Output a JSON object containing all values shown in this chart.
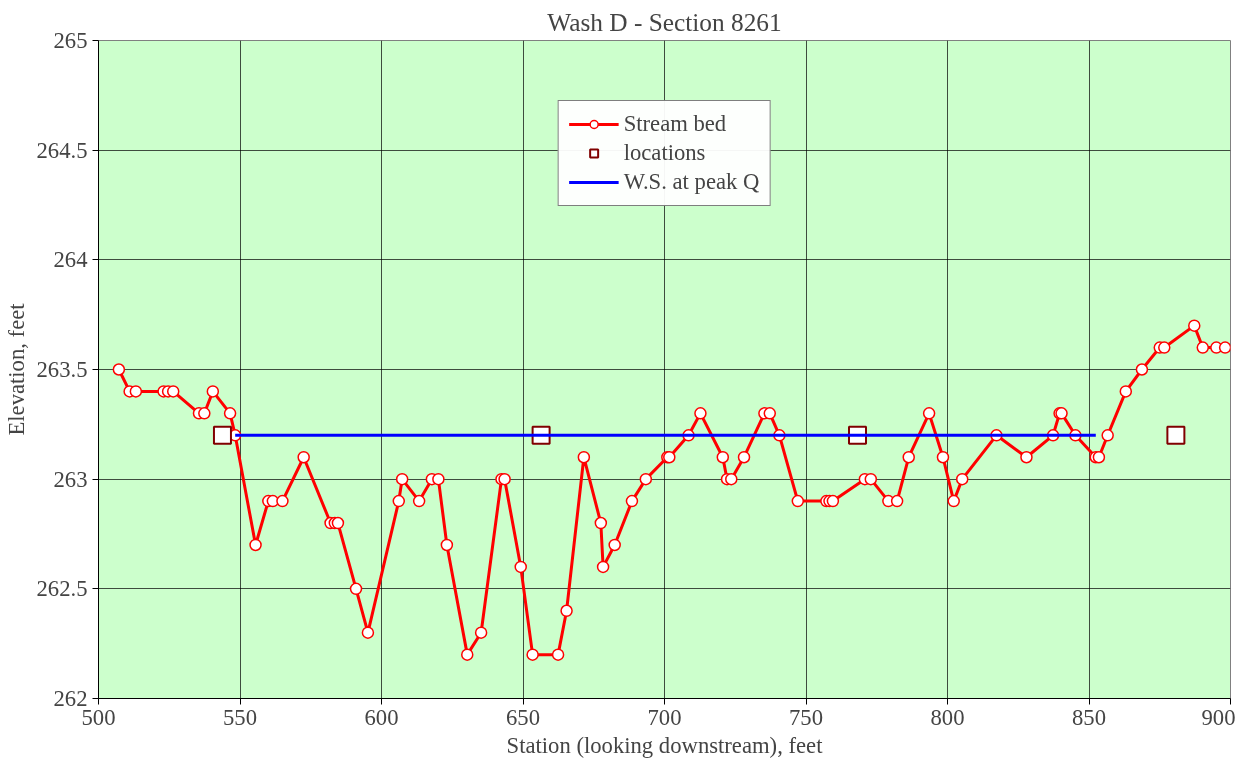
{
  "chart_data": {
    "type": "line",
    "title": "Wash D - Section 8261",
    "xlabel": "Station (looking downstream), feet",
    "ylabel": "Elevation, feet",
    "xlim": [
      500,
      900
    ],
    "xticks": [
      500,
      550,
      600,
      650,
      700,
      750,
      800,
      850,
      900
    ],
    "ylim": [
      262,
      265
    ],
    "yticks": [
      262,
      262.5,
      263,
      263.5,
      264,
      264.5,
      265
    ],
    "grid": true,
    "legend": "top",
    "line_style": "solid",
    "series": [
      {
        "name": "Stream bed",
        "marker": "circle",
        "color": "#ff0000",
        "x": [
          507.2,
          511,
          513.2,
          523,
          524.6,
          526.4,
          535.5,
          537.4,
          540.4,
          546.5,
          548.3,
          555.5,
          560,
          561.6,
          565,
          572.5,
          582,
          583.5,
          584.6,
          591,
          595.2,
          606.1,
          607.3,
          613.3,
          617.8,
          620.1,
          623.1,
          630.3,
          635.2,
          642.4,
          643.5,
          649.2,
          653.4,
          662.4,
          665.4,
          671.5,
          677.5,
          678.3,
          682.4,
          688.5,
          693.4,
          701,
          701.7,
          708.5,
          712.7,
          720.6,
          722.1,
          723.6,
          728.1,
          735.3,
          737.2,
          740.6,
          747.1,
          757.2,
          758.3,
          759.5,
          770.8,
          772.9,
          779.1,
          782.2,
          786.3,
          793.5,
          798.4,
          802.2,
          805.2,
          817.3,
          827.9,
          837.3,
          839.6,
          840.3,
          845.2,
          852.4,
          853.5,
          856.6,
          863,
          868.7,
          875,
          876.6,
          887.2,
          890.2,
          895,
          898.1
        ],
        "values": [
          263.5,
          263.4,
          263.4,
          263.4,
          263.4,
          263.4,
          263.3,
          263.3,
          263.4,
          263.3,
          263.2,
          262.7,
          262.9,
          262.9,
          262.9,
          263.1,
          262.8,
          262.8,
          262.8,
          262.5,
          262.3,
          262.9,
          263,
          262.9,
          263,
          263,
          262.7,
          262.2,
          262.3,
          263,
          263,
          262.6,
          262.2,
          262.2,
          262.4,
          263.1,
          262.8,
          262.6,
          262.7,
          262.9,
          263,
          263.1,
          263.1,
          263.2,
          263.3,
          263.1,
          263,
          263,
          263.1,
          263.3,
          263.3,
          263.2,
          262.9,
          262.9,
          262.9,
          262.9,
          263,
          263,
          262.9,
          262.9,
          263.1,
          263.3,
          263.1,
          262.9,
          263,
          263.2,
          263.1,
          263.2,
          263.3,
          263.3,
          263.2,
          263.1,
          263.1,
          263.2,
          263.4,
          263.5,
          263.6,
          263.6,
          263.7,
          263.6,
          263.6,
          263.6
        ]
      },
      {
        "name": "locations",
        "type": "scatter",
        "marker": "square",
        "color": "#800000",
        "x": [
          543.8,
          656.4,
          768.2,
          880.7
        ],
        "values": [
          263.2,
          263.2,
          263.2,
          263.2
        ]
      },
      {
        "name": "W.S. at peak Q",
        "marker": "none",
        "color": "#0000ff",
        "x": [
          548.3,
          852.4
        ],
        "values": [
          263.2,
          263.2
        ]
      }
    ]
  }
}
